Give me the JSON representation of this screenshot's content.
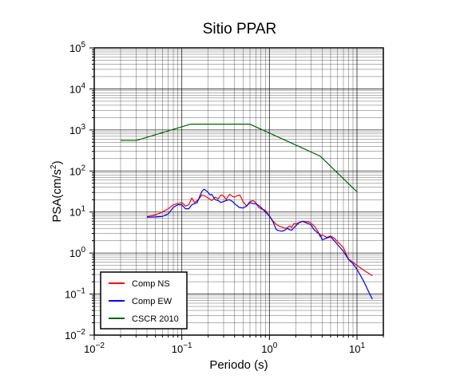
{
  "chart_data": {
    "type": "line",
    "title": "Sitio PPAR",
    "xlabel": "Periodo (s)",
    "ylabel": {
      "base": "PSA(cm/s",
      "exp": "2",
      "close": ")"
    },
    "x_scale": "log",
    "y_scale": "log",
    "xlim": [
      0.01,
      20
    ],
    "ylim": [
      0.01,
      100000
    ],
    "grid": true,
    "legend_position": "bottom-left",
    "x_ticks": [
      {
        "base": "10",
        "exp": "−2"
      },
      {
        "base": "10",
        "exp": "−1"
      },
      {
        "base": "10",
        "exp": "0"
      },
      {
        "base": "10",
        "exp": "1"
      }
    ],
    "y_ticks": [
      {
        "base": "10",
        "exp": "−2"
      },
      {
        "base": "10",
        "exp": "−1"
      },
      {
        "base": "10",
        "exp": "0"
      },
      {
        "base": "10",
        "exp": "1"
      },
      {
        "base": "10",
        "exp": "2"
      },
      {
        "base": "10",
        "exp": "3"
      },
      {
        "base": "10",
        "exp": "4"
      },
      {
        "base": "10",
        "exp": "5"
      }
    ],
    "series": [
      {
        "name": "Comp NS",
        "color": "#ff0000",
        "points": [
          [
            0.04,
            7.8
          ],
          [
            0.05,
            8.5
          ],
          [
            0.06,
            10
          ],
          [
            0.07,
            12
          ],
          [
            0.08,
            15
          ],
          [
            0.09,
            16
          ],
          [
            0.1,
            17
          ],
          [
            0.11,
            14
          ],
          [
            0.12,
            15
          ],
          [
            0.13,
            22
          ],
          [
            0.14,
            17
          ],
          [
            0.15,
            19
          ],
          [
            0.16,
            22
          ],
          [
            0.17,
            26
          ],
          [
            0.18,
            25
          ],
          [
            0.2,
            22
          ],
          [
            0.22,
            19
          ],
          [
            0.24,
            23
          ],
          [
            0.26,
            21
          ],
          [
            0.28,
            26
          ],
          [
            0.3,
            25
          ],
          [
            0.32,
            20
          ],
          [
            0.35,
            27
          ],
          [
            0.38,
            24
          ],
          [
            0.4,
            23
          ],
          [
            0.43,
            25
          ],
          [
            0.46,
            26
          ],
          [
            0.5,
            18
          ],
          [
            0.55,
            14
          ],
          [
            0.6,
            18
          ],
          [
            0.65,
            19
          ],
          [
            0.7,
            17
          ],
          [
            0.75,
            13
          ],
          [
            0.8,
            12
          ],
          [
            0.9,
            11
          ],
          [
            1.0,
            8
          ],
          [
            1.1,
            6
          ],
          [
            1.2,
            5
          ],
          [
            1.3,
            4.5
          ],
          [
            1.4,
            4.3
          ],
          [
            1.5,
            4
          ],
          [
            1.6,
            4.1
          ],
          [
            1.7,
            4.6
          ],
          [
            1.8,
            4.2
          ],
          [
            1.9,
            5.2
          ],
          [
            2.0,
            5.2
          ],
          [
            2.2,
            5.5
          ],
          [
            2.4,
            6
          ],
          [
            2.6,
            5.8
          ],
          [
            2.8,
            5.8
          ],
          [
            3.0,
            5.3
          ],
          [
            3.3,
            4.4
          ],
          [
            3.6,
            3.3
          ],
          [
            3.8,
            2.5
          ],
          [
            4.0,
            2.8
          ],
          [
            4.5,
            2.4
          ],
          [
            5.0,
            2.6
          ],
          [
            5.5,
            2.3
          ],
          [
            6.0,
            1.9
          ],
          [
            6.5,
            1.6
          ],
          [
            7.0,
            1.35
          ],
          [
            8.0,
            0.7
          ],
          [
            9.0,
            0.6
          ],
          [
            10.0,
            0.5
          ],
          [
            12.0,
            0.38
          ],
          [
            15.0,
            0.28
          ]
        ]
      },
      {
        "name": "Comp EW",
        "color": "#0000ff",
        "points": [
          [
            0.04,
            7.5
          ],
          [
            0.05,
            7.6
          ],
          [
            0.06,
            7.8
          ],
          [
            0.07,
            9
          ],
          [
            0.08,
            13
          ],
          [
            0.09,
            15
          ],
          [
            0.1,
            15
          ],
          [
            0.11,
            12
          ],
          [
            0.12,
            12
          ],
          [
            0.13,
            15
          ],
          [
            0.14,
            16
          ],
          [
            0.15,
            17
          ],
          [
            0.16,
            24
          ],
          [
            0.17,
            32
          ],
          [
            0.18,
            36
          ],
          [
            0.19,
            33
          ],
          [
            0.2,
            30
          ],
          [
            0.21,
            26
          ],
          [
            0.22,
            27
          ],
          [
            0.23,
            23
          ],
          [
            0.24,
            20
          ],
          [
            0.26,
            19
          ],
          [
            0.28,
            17
          ],
          [
            0.3,
            18
          ],
          [
            0.32,
            19
          ],
          [
            0.35,
            20
          ],
          [
            0.38,
            18
          ],
          [
            0.4,
            16
          ],
          [
            0.45,
            13
          ],
          [
            0.5,
            12.5
          ],
          [
            0.55,
            14
          ],
          [
            0.6,
            17
          ],
          [
            0.65,
            16
          ],
          [
            0.7,
            16
          ],
          [
            0.75,
            14.5
          ],
          [
            0.8,
            13
          ],
          [
            0.9,
            10
          ],
          [
            1.0,
            8
          ],
          [
            1.1,
            5.8
          ],
          [
            1.2,
            3.7
          ],
          [
            1.3,
            3.5
          ],
          [
            1.4,
            3.4
          ],
          [
            1.5,
            3.6
          ],
          [
            1.6,
            4
          ],
          [
            1.7,
            3.7
          ],
          [
            1.8,
            3.6
          ],
          [
            1.9,
            4.1
          ],
          [
            2.0,
            4.6
          ],
          [
            2.2,
            5.6
          ],
          [
            2.4,
            5.9
          ],
          [
            2.6,
            5.5
          ],
          [
            2.8,
            5.2
          ],
          [
            3.0,
            4.8
          ],
          [
            3.2,
            3.8
          ],
          [
            3.5,
            3.2
          ],
          [
            3.8,
            2.8
          ],
          [
            4.0,
            2.1
          ],
          [
            4.5,
            2.3
          ],
          [
            5.0,
            2.5
          ],
          [
            5.5,
            2.0
          ],
          [
            6.0,
            1.6
          ],
          [
            7.0,
            1.1
          ],
          [
            8.0,
            0.7
          ],
          [
            9.0,
            0.55
          ],
          [
            10.0,
            0.4
          ],
          [
            11.0,
            0.28
          ],
          [
            12.0,
            0.2
          ],
          [
            13.0,
            0.14
          ],
          [
            14.0,
            0.1
          ],
          [
            15.0,
            0.075
          ]
        ]
      },
      {
        "name": "CSCR 2010",
        "color": "#006400",
        "points": [
          [
            0.02,
            550
          ],
          [
            0.03,
            550
          ],
          [
            0.125,
            1380
          ],
          [
            0.6,
            1380
          ],
          [
            3.8,
            230
          ],
          [
            10.0,
            31
          ]
        ]
      }
    ]
  }
}
